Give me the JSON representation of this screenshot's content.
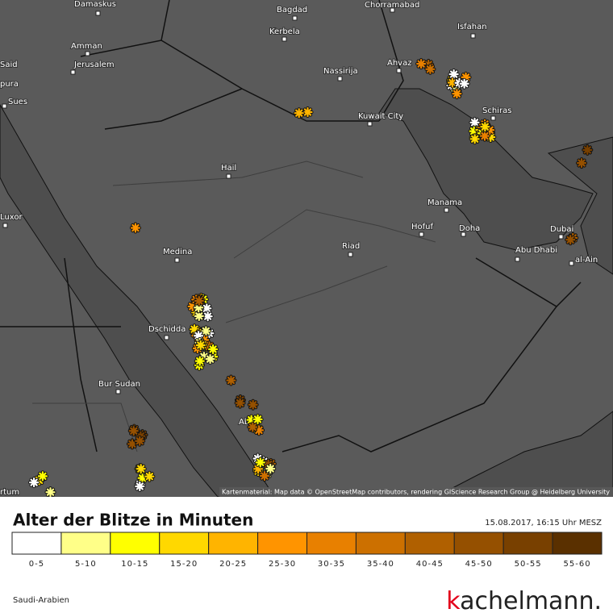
{
  "map": {
    "cities": [
      "Damaskus",
      "Bagdad",
      "Chorramabad",
      "Kerbela",
      "Amman",
      "Isfahan",
      "Said",
      "Jerusalem",
      "Ahvaz",
      "Nassirija",
      "pura",
      "Sues",
      "Schiras",
      "Kuwait City",
      "Hail",
      "Manama",
      "Luxor",
      "Hofuf",
      "Doha",
      "Riad",
      "Dubai",
      "Medina",
      "Abu Dhabi",
      "al-Ain",
      "Dschidda",
      "Bur Sudan",
      "Abha",
      "rtum"
    ],
    "attribution": "Kartenmaterial: Map data © OpenStreetMap contributors, rendering GIScience Research Group @ Heidelberg University"
  },
  "legend": {
    "title": "Alter der Blitze in Minuten",
    "timestamp": "15.08.2017, 16:15 Uhr MESZ",
    "items": [
      {
        "label": "0-5",
        "color": "#ffffff"
      },
      {
        "label": "5-10",
        "color": "#ffff88"
      },
      {
        "label": "10-15",
        "color": "#ffff00"
      },
      {
        "label": "15-20",
        "color": "#ffd800"
      },
      {
        "label": "20-25",
        "color": "#ffb400"
      },
      {
        "label": "25-30",
        "color": "#ff9400"
      },
      {
        "label": "30-35",
        "color": "#e88000"
      },
      {
        "label": "35-40",
        "color": "#cc7000"
      },
      {
        "label": "40-45",
        "color": "#b06000"
      },
      {
        "label": "45-50",
        "color": "#955000"
      },
      {
        "label": "50-55",
        "color": "#784000"
      },
      {
        "label": "55-60",
        "color": "#5a3000"
      }
    ]
  },
  "footer": {
    "region": "Saudi-Arabien",
    "brand": [
      "k",
      "achelmann."
    ]
  }
}
